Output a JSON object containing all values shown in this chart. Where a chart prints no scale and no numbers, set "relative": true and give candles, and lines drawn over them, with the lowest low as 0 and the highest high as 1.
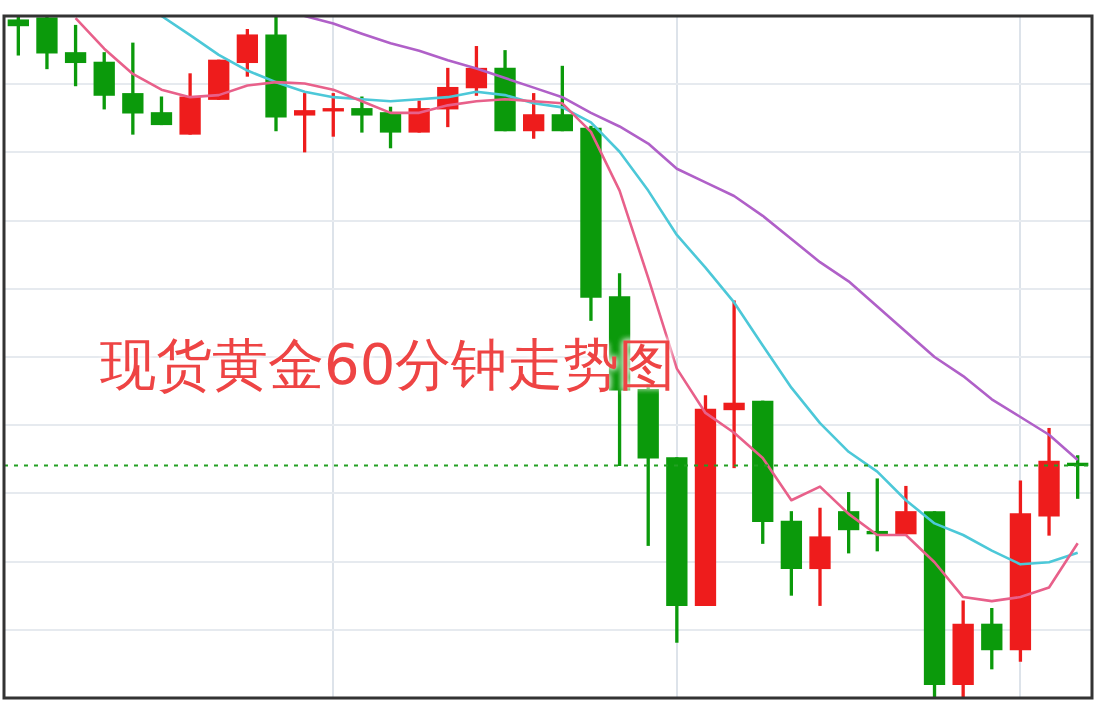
{
  "chart_data": {
    "type": "candlestick",
    "title": "现货黄金60分钟走势图",
    "relative": true,
    "grid": true,
    "legend": false,
    "categories": [
      null,
      null,
      null,
      null,
      null,
      null,
      null,
      null,
      null,
      null,
      null,
      null,
      null,
      null,
      null,
      null,
      null,
      null,
      null,
      null,
      null,
      null,
      null,
      null,
      null,
      null,
      null,
      null,
      null,
      null,
      null,
      null,
      null,
      null,
      null,
      null,
      null,
      null
    ],
    "ohlc": [
      [
        0.994,
        1,
        0.943,
        0.986
      ],
      [
        0.997,
        1,
        0.923,
        0.946
      ],
      [
        0.946,
        0.986,
        0.898,
        0.932
      ],
      [
        0.932,
        0.946,
        0.864,
        0.884
      ],
      [
        0.886,
        0.96,
        0.827,
        0.858
      ],
      [
        0.858,
        0.881,
        0.841,
        0.841
      ],
      [
        0.827,
        0.915,
        0.827,
        0.881
      ],
      [
        0.878,
        0.935,
        0.878,
        0.935
      ],
      [
        0.932,
        0.98,
        0.912,
        0.972
      ],
      [
        0.972,
        1,
        0.832,
        0.852
      ],
      [
        0.855,
        0.886,
        0.801,
        0.861
      ],
      [
        0.861,
        0.886,
        0.824,
        0.864
      ],
      [
        0.864,
        0.881,
        0.83,
        0.855
      ],
      [
        0.858,
        0.866,
        0.807,
        0.83
      ],
      [
        0.83,
        0.875,
        0.83,
        0.864
      ],
      [
        0.864,
        0.923,
        0.838,
        0.895
      ],
      [
        0.895,
        0.955,
        0.884,
        0.923
      ],
      [
        0.923,
        0.949,
        0.832,
        0.832
      ],
      [
        0.832,
        0.886,
        0.821,
        0.855
      ],
      [
        0.855,
        0.926,
        0.832,
        0.832
      ],
      [
        0.835,
        0.838,
        0.554,
        0.588
      ],
      [
        0.588,
        0.622,
        0.341,
        0.452
      ],
      [
        0.452,
        0.46,
        0.224,
        0.352
      ],
      [
        0.352,
        0.352,
        0.082,
        0.136
      ],
      [
        0.136,
        0.443,
        0.136,
        0.423
      ],
      [
        0.423,
        0.582,
        0.338,
        0.432
      ],
      [
        0.435,
        0.435,
        0.227,
        0.259
      ],
      [
        0.259,
        0.273,
        0.151,
        0.19
      ],
      [
        0.19,
        0.278,
        0.136,
        0.236
      ],
      [
        0.273,
        0.301,
        0.213,
        0.247
      ],
      [
        0.244,
        0.321,
        0.216,
        0.241
      ],
      [
        0.241,
        0.31,
        0.241,
        0.273
      ],
      [
        0.273,
        0.273,
        0,
        0.02
      ],
      [
        0.02,
        0.142,
        0,
        0.108
      ],
      [
        0.108,
        0.131,
        0.043,
        0.071
      ],
      [
        0.071,
        0.318,
        0.054,
        0.27
      ],
      [
        0.267,
        0.395,
        0.239,
        0.347
      ],
      [
        0.344,
        0.355,
        0.293,
        0.341
      ]
    ],
    "colors": [
      "#0b9a0b",
      "#0b9a0b",
      "#0b9a0b",
      "#0b9a0b",
      "#0b9a0b",
      "#0b9a0b",
      "#ee1c1c",
      "#ee1c1c",
      "#ee1c1c",
      "#0b9a0b",
      "#ee1c1c",
      "#ee1c1c",
      "#0b9a0b",
      "#0b9a0b",
      "#ee1c1c",
      "#ee1c1c",
      "#ee1c1c",
      "#0b9a0b",
      "#ee1c1c",
      "#0b9a0b",
      "#0b9a0b",
      "#0b9a0b",
      "#0b9a0b",
      "#0b9a0b",
      "#ee1c1c",
      "#ee1c1c",
      "#0b9a0b",
      "#0b9a0b",
      "#ee1c1c",
      "#0b9a0b",
      "#0b9a0b",
      "#ee1c1c",
      "#0b9a0b",
      "#ee1c1c",
      "#0b9a0b",
      "#ee1c1c",
      "#ee1c1c",
      "#0b9a0b"
    ],
    "series": [
      {
        "type": "line",
        "color": "#e8608a",
        "values": [
          null,
          null,
          0.997,
          0.952,
          0.915,
          0.892,
          0.881,
          0.884,
          0.898,
          0.903,
          0.901,
          0.892,
          0.875,
          0.858,
          0.858,
          0.869,
          0.875,
          0.878,
          0.875,
          0.872,
          0.83,
          0.744,
          0.616,
          0.483,
          0.418,
          0.389,
          0.352,
          0.29,
          0.31,
          0.27,
          0.239,
          0.239,
          0.199,
          0.148,
          0.142,
          0.148,
          0.162,
          0.227
        ]
      },
      {
        "type": "line",
        "color": "#4cc8d8",
        "values": [
          null,
          null,
          null,
          null,
          null,
          1,
          0.972,
          0.943,
          0.92,
          0.903,
          0.889,
          0.881,
          0.878,
          0.875,
          0.878,
          0.881,
          0.889,
          0.884,
          0.872,
          0.866,
          0.844,
          0.801,
          0.744,
          0.679,
          0.631,
          0.58,
          0.517,
          0.455,
          0.403,
          0.361,
          0.332,
          0.29,
          0.256,
          0.239,
          0.216,
          0.196,
          0.199,
          0.213
        ]
      },
      {
        "type": "line",
        "color": "#b060c8",
        "values": [
          null,
          null,
          null,
          null,
          null,
          null,
          null,
          null,
          null,
          null,
          1,
          0.989,
          0.974,
          0.96,
          0.949,
          0.935,
          0.923,
          0.909,
          0.895,
          0.881,
          0.858,
          0.838,
          0.813,
          0.776,
          0.756,
          0.736,
          0.707,
          0.673,
          0.639,
          0.611,
          0.574,
          0.537,
          0.5,
          0.472,
          0.438,
          0.412,
          0.386,
          0.349
        ]
      }
    ],
    "ref_lines": [
      {
        "axis": "y",
        "value": 0.341,
        "color": "#22a022",
        "line_style": "dotted"
      }
    ]
  }
}
